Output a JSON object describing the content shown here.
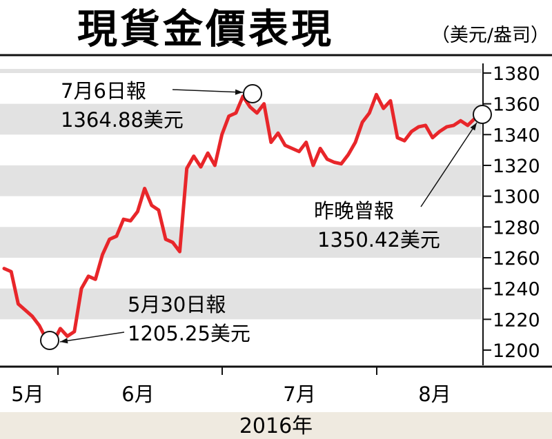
{
  "chart_data": {
    "type": "line",
    "title": "現貨金價表現",
    "unit": "（美元/盎司）",
    "y_ticks": [
      "1380",
      "1360",
      "1340",
      "1320",
      "1300",
      "1280",
      "1260",
      "1240",
      "1220",
      "1200"
    ],
    "ylim": [
      1195,
      1385
    ],
    "x_month_labels": [
      "5月",
      "6月",
      "7月",
      "8月"
    ],
    "x_caption": "2016年",
    "grid": "alternating horizontal bands",
    "line_color": "#e8262a",
    "band_color": "#e2e2e2",
    "footer_band_color": "#efeae0",
    "series": [
      {
        "values": [
          1253,
          1251,
          1230,
          1226,
          1222,
          1216,
          1207,
          1205.25,
          1214,
          1209,
          1212,
          1240,
          1248,
          1246,
          1262,
          1272,
          1274,
          1285,
          1284,
          1290,
          1305,
          1294,
          1291,
          1272,
          1270,
          1264,
          1318,
          1326,
          1319,
          1328,
          1320,
          1340,
          1352,
          1354,
          1364.88,
          1358,
          1354,
          1360,
          1335,
          1341,
          1333,
          1331,
          1329,
          1335,
          1320,
          1331,
          1324,
          1322,
          1321,
          1327,
          1335,
          1348,
          1354,
          1366,
          1357,
          1362,
          1338,
          1336,
          1342,
          1345,
          1346,
          1338,
          1342,
          1345,
          1346,
          1349,
          1346,
          1350.42
        ]
      }
    ],
    "annotations": [
      {
        "date": "7月6日報",
        "value": "1364.88美元"
      },
      {
        "date": "昨晚曾報",
        "value": "1350.42美元"
      },
      {
        "date": "5月30日報",
        "value": "1205.25美元"
      }
    ]
  }
}
